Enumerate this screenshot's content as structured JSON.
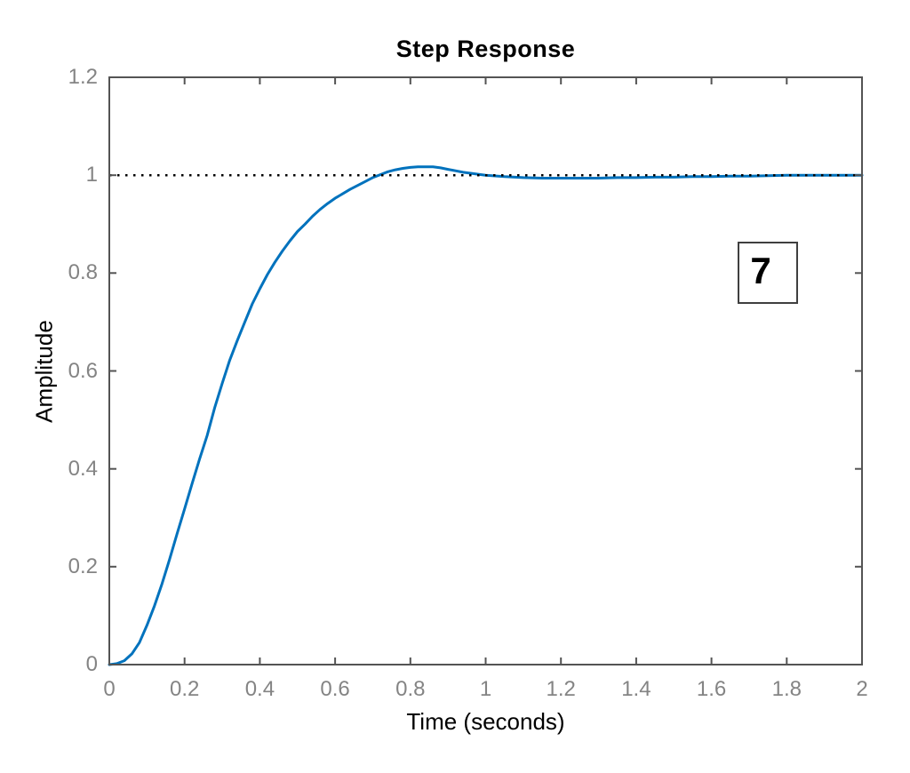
{
  "window": {
    "background": "#ffffff"
  },
  "colors": {
    "curve": "#0072BD",
    "axis": "#545454",
    "tick_label": "#848484",
    "text": "#000000",
    "reference_line": "#000000",
    "annotation_border": "#3f3f3f"
  },
  "chart_data": {
    "type": "line",
    "title": "Step Response",
    "xlabel": "Time (seconds)",
    "ylabel": "Amplitude",
    "xlim": [
      0,
      2
    ],
    "ylim": [
      0,
      1.2
    ],
    "x_tick_values": [
      0,
      0.2,
      0.4,
      0.6,
      0.8,
      1,
      1.2,
      1.4,
      1.6,
      1.8,
      2
    ],
    "x_tick_labels": [
      "0",
      "0.2",
      "0.4",
      "0.6",
      "0.8",
      "1",
      "1.2",
      "1.4",
      "1.6",
      "1.8",
      "2"
    ],
    "y_tick_values": [
      0,
      0.2,
      0.4,
      0.6,
      0.8,
      1,
      1.2
    ],
    "y_tick_labels": [
      "0",
      "0.2",
      "0.4",
      "0.6",
      "0.8",
      "1",
      "1.2"
    ],
    "grid": false,
    "legend": "none",
    "reference_line": {
      "y": 1.0,
      "style": "dotted",
      "color": "#000000"
    },
    "annotations": [
      {
        "text": "7",
        "x": 1.75,
        "y": 0.8,
        "boxed": true
      }
    ],
    "peak_value": 1.017,
    "peak_time": 0.83,
    "final_value": 1.0,
    "series": [
      {
        "name": "step response",
        "color": "#0072BD",
        "points": [
          [
            0.0,
            0.0
          ],
          [
            0.02,
            0.002
          ],
          [
            0.04,
            0.008
          ],
          [
            0.06,
            0.022
          ],
          [
            0.08,
            0.045
          ],
          [
            0.1,
            0.08
          ],
          [
            0.12,
            0.12
          ],
          [
            0.14,
            0.165
          ],
          [
            0.16,
            0.215
          ],
          [
            0.18,
            0.267
          ],
          [
            0.2,
            0.318
          ],
          [
            0.22,
            0.37
          ],
          [
            0.24,
            0.42
          ],
          [
            0.26,
            0.468
          ],
          [
            0.28,
            0.525
          ],
          [
            0.3,
            0.575
          ],
          [
            0.32,
            0.622
          ],
          [
            0.34,
            0.662
          ],
          [
            0.36,
            0.7
          ],
          [
            0.38,
            0.737
          ],
          [
            0.4,
            0.768
          ],
          [
            0.42,
            0.797
          ],
          [
            0.44,
            0.822
          ],
          [
            0.46,
            0.845
          ],
          [
            0.48,
            0.866
          ],
          [
            0.5,
            0.885
          ],
          [
            0.52,
            0.9
          ],
          [
            0.54,
            0.916
          ],
          [
            0.56,
            0.93
          ],
          [
            0.58,
            0.942
          ],
          [
            0.6,
            0.953
          ],
          [
            0.62,
            0.962
          ],
          [
            0.64,
            0.971
          ],
          [
            0.66,
            0.979
          ],
          [
            0.68,
            0.987
          ],
          [
            0.7,
            0.995
          ],
          [
            0.72,
            1.001
          ],
          [
            0.74,
            1.007
          ],
          [
            0.76,
            1.011
          ],
          [
            0.78,
            1.014
          ],
          [
            0.8,
            1.016
          ],
          [
            0.82,
            1.017
          ],
          [
            0.84,
            1.017
          ],
          [
            0.86,
            1.017
          ],
          [
            0.88,
            1.015
          ],
          [
            0.9,
            1.012
          ],
          [
            0.92,
            1.009
          ],
          [
            0.94,
            1.006
          ],
          [
            0.96,
            1.004
          ],
          [
            0.98,
            1.002
          ],
          [
            1.0,
            1.0
          ],
          [
            1.05,
            0.997
          ],
          [
            1.1,
            0.995
          ],
          [
            1.15,
            0.994
          ],
          [
            1.2,
            0.994
          ],
          [
            1.25,
            0.994
          ],
          [
            1.3,
            0.994
          ],
          [
            1.35,
            0.995
          ],
          [
            1.4,
            0.995
          ],
          [
            1.45,
            0.996
          ],
          [
            1.5,
            0.996
          ],
          [
            1.55,
            0.997
          ],
          [
            1.6,
            0.997
          ],
          [
            1.65,
            0.998
          ],
          [
            1.7,
            0.998
          ],
          [
            1.75,
            0.999
          ],
          [
            1.8,
            1.0
          ],
          [
            1.85,
            1.0
          ],
          [
            1.9,
            1.0
          ],
          [
            1.95,
            1.0
          ],
          [
            2.0,
            1.0
          ]
        ]
      }
    ]
  }
}
